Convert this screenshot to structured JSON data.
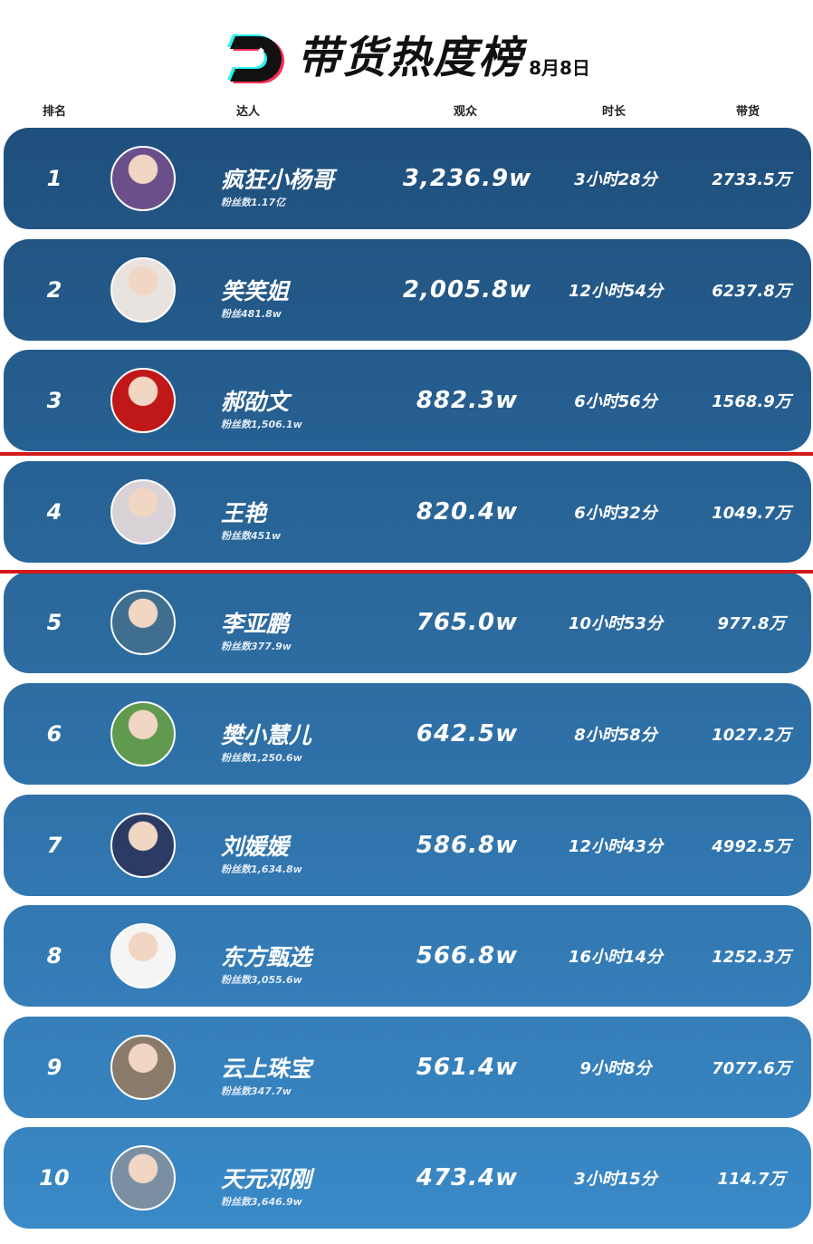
{
  "header": {
    "title": "带货热度榜",
    "date": "8月8日"
  },
  "columns": {
    "rank": "排名",
    "streamer": "达人",
    "audience": "观众",
    "duration": "时长",
    "sales": "带货"
  },
  "colors": {
    "row_top": "#1f4f7c",
    "row_bottom": "#3a8ac8",
    "cutoff_line": "#d21a1a"
  },
  "rows": [
    {
      "rank": "1",
      "name": "疯狂小杨哥",
      "fans": "粉丝数1.17亿",
      "audience": "3,236.9w",
      "duration": "3小时28分",
      "sales": "2733.5万",
      "avatar": "#6a4f8a"
    },
    {
      "rank": "2",
      "name": "笑笑姐",
      "fans": "粉丝481.8w",
      "audience": "2,005.8w",
      "duration": "12小时54分",
      "sales": "6237.8万",
      "avatar": "#e9e3df"
    },
    {
      "rank": "3",
      "name": "郝劭文",
      "fans": "粉丝数1,506.1w",
      "audience": "882.3w",
      "duration": "6小时56分",
      "sales": "1568.9万",
      "avatar": "#c01818"
    },
    {
      "rank": "4",
      "name": "王艳",
      "fans": "粉丝数451w",
      "audience": "820.4w",
      "duration": "6小时32分",
      "sales": "1049.7万",
      "avatar": "#d9d3d8"
    },
    {
      "rank": "5",
      "name": "李亚鹏",
      "fans": "粉丝数377.9w",
      "audience": "765.0w",
      "duration": "10小时53分",
      "sales": "977.8万",
      "avatar": "#3f6e8f"
    },
    {
      "rank": "6",
      "name": "樊小慧儿",
      "fans": "粉丝数1,250.6w",
      "audience": "642.5w",
      "duration": "8小时58分",
      "sales": "1027.2万",
      "avatar": "#5f9a4e"
    },
    {
      "rank": "7",
      "name": "刘媛媛",
      "fans": "粉丝数1,634.8w",
      "audience": "586.8w",
      "duration": "12小时43分",
      "sales": "4992.5万",
      "avatar": "#2c3b63"
    },
    {
      "rank": "8",
      "name": "东方甄选",
      "fans": "粉丝数3,055.6w",
      "audience": "566.8w",
      "duration": "16小时14分",
      "sales": "1252.3万",
      "avatar": "#f5f5f5"
    },
    {
      "rank": "9",
      "name": "云上珠宝",
      "fans": "粉丝数347.7w",
      "audience": "561.4w",
      "duration": "9小时8分",
      "sales": "7077.6万",
      "avatar": "#8a7a6a"
    },
    {
      "rank": "10",
      "name": "天元邓刚",
      "fans": "粉丝数3,646.9w",
      "audience": "473.4w",
      "duration": "3小时15分",
      "sales": "114.7万",
      "avatar": "#7b8fa3"
    }
  ]
}
